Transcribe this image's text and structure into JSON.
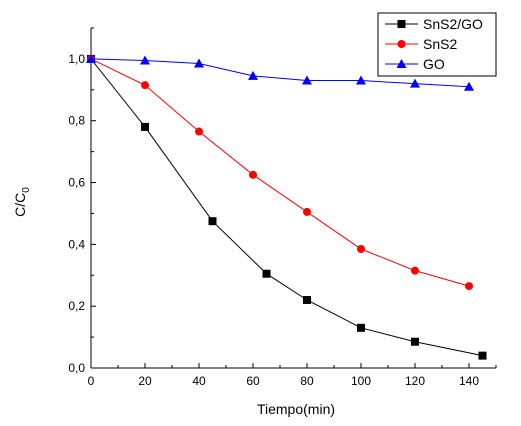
{
  "chart_data": {
    "type": "line",
    "xlabel": "Tiempo(min)",
    "ylabel_main": "C/C",
    "ylabel_sub": "0",
    "xlim": [
      0,
      150
    ],
    "ylim": [
      0,
      1.1
    ],
    "x_ticks": [
      0,
      20,
      40,
      60,
      80,
      100,
      120,
      140
    ],
    "x_tick_labels": [
      "0",
      "20",
      "40",
      "60",
      "80",
      "100",
      "120",
      "140"
    ],
    "y_ticks": [
      0,
      0.2,
      0.4,
      0.6,
      0.8,
      1.0
    ],
    "y_tick_labels": [
      "0,0",
      "0,2",
      "0,4",
      "0,6",
      "0,8",
      "1,0"
    ],
    "grid": false,
    "legend_position": "top-right",
    "series": [
      {
        "name": "SnS2/GO",
        "color": "#000000",
        "marker": "square",
        "x": [
          0,
          20,
          45,
          65,
          80,
          100,
          120,
          145
        ],
        "y": [
          1.0,
          0.78,
          0.475,
          0.305,
          0.22,
          0.13,
          0.085,
          0.04
        ]
      },
      {
        "name": "SnS2",
        "color": "#ff0000",
        "marker": "circle",
        "x": [
          0,
          20,
          40,
          60,
          80,
          100,
          120,
          140
        ],
        "y": [
          1.0,
          0.915,
          0.765,
          0.625,
          0.505,
          0.385,
          0.315,
          0.265
        ]
      },
      {
        "name": "GO",
        "color": "#0000ff",
        "marker": "triangle",
        "x": [
          0,
          20,
          40,
          60,
          80,
          100,
          120,
          140
        ],
        "y": [
          1.0,
          0.995,
          0.985,
          0.945,
          0.93,
          0.93,
          0.92,
          0.91
        ]
      }
    ]
  }
}
